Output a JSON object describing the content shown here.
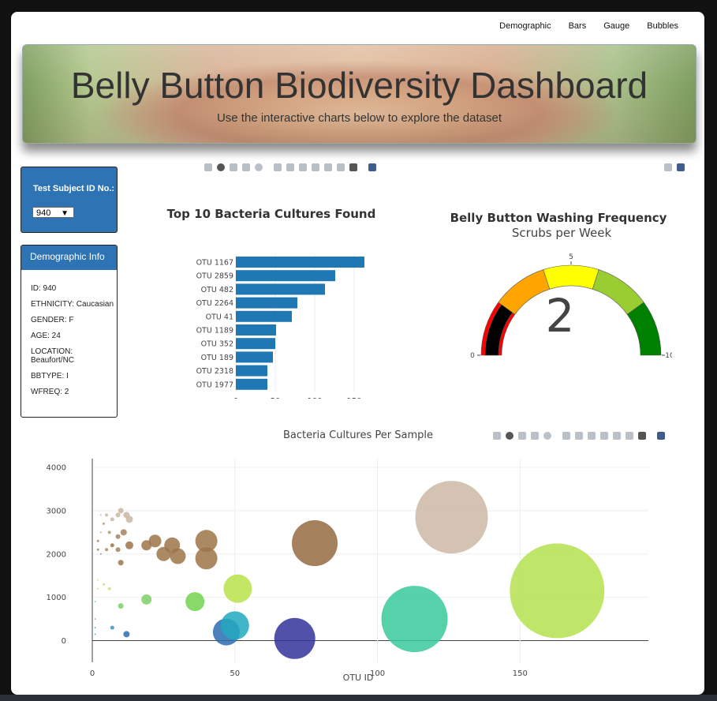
{
  "nav": {
    "items": [
      "Demographic",
      "Bars",
      "Gauge",
      "Bubbles"
    ]
  },
  "banner": {
    "title": "Belly Button Biodiversity Dashboard",
    "subtitle": "Use the interactive charts below to explore the dataset"
  },
  "selector": {
    "label": "Test Subject ID No.:",
    "value": "940"
  },
  "demographic": {
    "header": "Demographic Info",
    "rows": [
      "ID: 940",
      "ETHNICITY: Caucasian",
      "GENDER: F",
      "AGE: 24",
      "LOCATION: Beaufort/NC",
      "BBTYPE: I",
      "WFREQ: 2"
    ]
  },
  "colors": {
    "accent": "#2e74b5",
    "bar": "#1f77b4"
  },
  "chart_data": [
    {
      "type": "bar",
      "orientation": "horizontal",
      "title": "Top 10 Bacteria Cultures Found",
      "categories": [
        "OTU 1167",
        "OTU 2859",
        "OTU 482",
        "OTU 2264",
        "OTU 41",
        "OTU 1189",
        "OTU 352",
        "OTU 189",
        "OTU 2318",
        "OTU 1977"
      ],
      "values": [
        163,
        126,
        113,
        78,
        71,
        51,
        50,
        47,
        40,
        40
      ],
      "xticks": [
        0,
        50,
        100,
        150
      ],
      "xlim": [
        0,
        175
      ]
    },
    {
      "type": "gauge",
      "title": "Belly Button Washing Frequency",
      "subtitle": "Scrubs per Week",
      "value": 2,
      "range": [
        0,
        10
      ],
      "tick_labels": [
        "0",
        "5",
        "10"
      ],
      "bands": [
        {
          "from": 0,
          "to": 2,
          "color": "#ff0000"
        },
        {
          "from": 2,
          "to": 4,
          "color": "#ffa500"
        },
        {
          "from": 4,
          "to": 6,
          "color": "#ffff00"
        },
        {
          "from": 6,
          "to": 8,
          "color": "#9acd32"
        },
        {
          "from": 8,
          "to": 10,
          "color": "#008000"
        }
      ],
      "bar_color": "#000000"
    },
    {
      "type": "scatter",
      "title": "Bacteria Cultures Per Sample",
      "xlabel": "OTU ID",
      "xticks": [
        0,
        50,
        100,
        150
      ],
      "yticks": [
        0,
        1000,
        2000,
        3000,
        4000
      ],
      "xlim": [
        0,
        195
      ],
      "ylim": [
        -500,
        4200
      ],
      "points": [
        {
          "x": 1,
          "y": 150,
          "r": 1,
          "c": "#58a3c9"
        },
        {
          "x": 1,
          "y": 300,
          "r": 1,
          "c": "#58a3c9"
        },
        {
          "x": 1,
          "y": 500,
          "r": 1,
          "c": "#6cc8a0"
        },
        {
          "x": 1,
          "y": 900,
          "r": 1,
          "c": "#7ed27e"
        },
        {
          "x": 2,
          "y": 1200,
          "r": 1,
          "c": "#c8e07a"
        },
        {
          "x": 2,
          "y": 1400,
          "r": 1,
          "c": "#d7e27a"
        },
        {
          "x": 2,
          "y": 2100,
          "r": 1.5,
          "c": "#a98a5f"
        },
        {
          "x": 2,
          "y": 2300,
          "r": 1.5,
          "c": "#a98a5f"
        },
        {
          "x": 3,
          "y": 2500,
          "r": 1,
          "c": "#b59a77"
        },
        {
          "x": 3,
          "y": 2900,
          "r": 1,
          "c": "#c8b6a2"
        },
        {
          "x": 3,
          "y": 2000,
          "r": 1,
          "c": "#a98a5f"
        },
        {
          "x": 4,
          "y": 1300,
          "r": 1.5,
          "c": "#c8e07a"
        },
        {
          "x": 4,
          "y": 2700,
          "r": 1.5,
          "c": "#b59a77"
        },
        {
          "x": 5,
          "y": 2900,
          "r": 2,
          "c": "#c8b6a2"
        },
        {
          "x": 5,
          "y": 2100,
          "r": 2,
          "c": "#a98a5f"
        },
        {
          "x": 6,
          "y": 1200,
          "r": 2,
          "c": "#c8e07a"
        },
        {
          "x": 6,
          "y": 2500,
          "r": 2,
          "c": "#b59a77"
        },
        {
          "x": 7,
          "y": 300,
          "r": 2.5,
          "c": "#3e8fc4"
        },
        {
          "x": 7,
          "y": 2800,
          "r": 2.5,
          "c": "#c8b6a2"
        },
        {
          "x": 7,
          "y": 2200,
          "r": 2.5,
          "c": "#9c7448"
        },
        {
          "x": 9,
          "y": 2900,
          "r": 3,
          "c": "#c8b6a2"
        },
        {
          "x": 9,
          "y": 2400,
          "r": 3,
          "c": "#a5825a"
        },
        {
          "x": 9,
          "y": 2100,
          "r": 3,
          "c": "#a5825a"
        },
        {
          "x": 10,
          "y": 3000,
          "r": 3.5,
          "c": "#c8b6a2"
        },
        {
          "x": 10,
          "y": 800,
          "r": 3.5,
          "c": "#7fd06a"
        },
        {
          "x": 10,
          "y": 1800,
          "r": 3.5,
          "c": "#9c7448"
        },
        {
          "x": 11,
          "y": 2500,
          "r": 4,
          "c": "#a5825a"
        },
        {
          "x": 12,
          "y": 150,
          "r": 4,
          "c": "#2b6cb0"
        },
        {
          "x": 12,
          "y": 2900,
          "r": 4,
          "c": "#c8b6a2"
        },
        {
          "x": 13,
          "y": 2800,
          "r": 4.5,
          "c": "#c8b6a2"
        },
        {
          "x": 13,
          "y": 2200,
          "r": 5,
          "c": "#9c7448"
        },
        {
          "x": 19,
          "y": 950,
          "r": 6.5,
          "c": "#7fd06a"
        },
        {
          "x": 19,
          "y": 2200,
          "r": 6.5,
          "c": "#9c7448"
        },
        {
          "x": 22,
          "y": 2300,
          "r": 8,
          "c": "#9c7448"
        },
        {
          "x": 25,
          "y": 2000,
          "r": 9,
          "c": "#9c7448"
        },
        {
          "x": 28,
          "y": 2200,
          "r": 10,
          "c": "#9c7448"
        },
        {
          "x": 30,
          "y": 1950,
          "r": 10,
          "c": "#9c7448"
        },
        {
          "x": 36,
          "y": 900,
          "r": 12,
          "c": "#72d24f"
        },
        {
          "x": 40,
          "y": 2300,
          "r": 14,
          "c": "#9c7448"
        },
        {
          "x": 40,
          "y": 1900,
          "r": 14,
          "c": "#9c7448"
        },
        {
          "x": 47,
          "y": 200,
          "r": 17,
          "c": "#2b6cb0"
        },
        {
          "x": 50,
          "y": 350,
          "r": 18,
          "c": "#22a8c0"
        },
        {
          "x": 51,
          "y": 1200,
          "r": 18,
          "c": "#b8e24a"
        },
        {
          "x": 71,
          "y": 50,
          "r": 26,
          "c": "#33339a"
        },
        {
          "x": 78,
          "y": 2250,
          "r": 29,
          "c": "#946a40"
        },
        {
          "x": 113,
          "y": 500,
          "r": 42,
          "c": "#3ac99a"
        },
        {
          "x": 126,
          "y": 2850,
          "r": 46,
          "c": "#ccb8a6"
        },
        {
          "x": 163,
          "y": 1150,
          "r": 60,
          "c": "#b4e04f"
        }
      ]
    }
  ]
}
